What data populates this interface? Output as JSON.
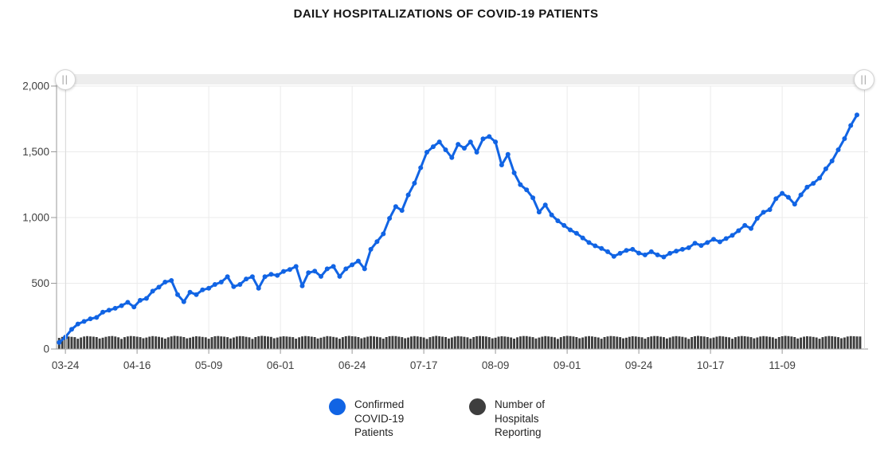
{
  "title": "DAILY HOSPITALIZATIONS OF COVID-19 PATIENTS",
  "range_slider": {
    "handle_icon": "||"
  },
  "colors": {
    "line": "#1164e4",
    "bar": "#3e3e3e",
    "grid": "#ebebeb",
    "axis": "#999999",
    "label": "#3f3f3f",
    "track": "#ededed",
    "stem": "#dcdcdc"
  },
  "chart_data": {
    "type": "line+bar",
    "title": "DAILY HOSPITALIZATIONS OF COVID-19 PATIENTS",
    "ylim": [
      0,
      2000
    ],
    "grid": true,
    "legend_position": "bottom",
    "y_ticks": [
      {
        "label": "2,000",
        "value": 2000
      },
      {
        "label": "1,500",
        "value": 1500
      },
      {
        "label": "1,000",
        "value": 1000
      },
      {
        "label": "500",
        "value": 500
      },
      {
        "label": "0",
        "value": 0
      }
    ],
    "x_ticks": [
      {
        "label": "03-24",
        "day": 2
      },
      {
        "label": "04-16",
        "day": 25
      },
      {
        "label": "05-09",
        "day": 48
      },
      {
        "label": "06-01",
        "day": 71
      },
      {
        "label": "06-24",
        "day": 94
      },
      {
        "label": "07-17",
        "day": 117
      },
      {
        "label": "08-09",
        "day": 140
      },
      {
        "label": "09-01",
        "day": 163
      },
      {
        "label": "09-24",
        "day": 186
      },
      {
        "label": "10-17",
        "day": 209
      },
      {
        "label": "11-09",
        "day": 232
      }
    ],
    "series": [
      {
        "name": "Confirmed COVID-19 Patients",
        "type": "line",
        "color": "#1164e4",
        "start_day": 0,
        "day_step": 2,
        "values": [
          50,
          90,
          150,
          190,
          210,
          230,
          240,
          280,
          295,
          310,
          330,
          355,
          320,
          370,
          385,
          440,
          470,
          509,
          521,
          414,
          360,
          432,
          414,
          450,
          462,
          491,
          509,
          550,
          474,
          491,
          533,
          550,
          462,
          550,
          568,
          560,
          590,
          605,
          628,
          480,
          580,
          592,
          552,
          610,
          628,
          552,
          610,
          640,
          669,
          610,
          758,
          817,
          876,
          994,
          1083,
          1054,
          1172,
          1261,
          1379,
          1497,
          1539,
          1575,
          1515,
          1456,
          1557,
          1527,
          1575,
          1497,
          1598,
          1616,
          1575,
          1400,
          1480,
          1340,
          1250,
          1210,
          1150,
          1042,
          1095,
          1020,
          975,
          940,
          906,
          880,
          845,
          810,
          785,
          765,
          740,
          705,
          728,
          750,
          758,
          730,
          716,
          740,
          716,
          700,
          728,
          745,
          758,
          770,
          805,
          787,
          810,
          835,
          815,
          840,
          864,
          900,
          940,
          917,
          994,
          1040,
          1060,
          1143,
          1184,
          1154,
          1101,
          1172,
          1231,
          1260,
          1300,
          1370,
          1430,
          1515,
          1600,
          1700,
          1780
        ]
      },
      {
        "name": "Number of Hospitals Reporting",
        "type": "bar",
        "color": "#3e3e3e",
        "start_day": 0,
        "day_step": 1,
        "values": [
          85,
          92,
          96,
          95,
          93,
          90,
          78,
          88,
          95,
          98,
          96,
          94,
          91,
          80,
          86,
          93,
          97,
          99,
          95,
          89,
          77,
          90,
          96,
          99,
          97,
          94,
          90,
          82,
          87,
          94,
          98,
          96,
          93,
          88,
          79,
          89,
          96,
          100,
          98,
          95,
          91,
          81,
          86,
          93,
          97,
          95,
          92,
          89,
          78,
          90,
          97,
          99,
          96,
          94,
          90,
          80,
          88,
          95,
          98,
          97,
          93,
          89,
          77,
          91,
          97,
          100,
          98,
          95,
          92,
          82,
          87,
          94,
          97,
          95,
          93,
          90,
          79,
          89,
          96,
          99,
          97,
          94,
          91,
          80,
          86,
          93,
          98,
          96,
          92,
          88,
          78,
          90,
          97,
          100,
          97,
          95,
          91,
          81,
          88,
          94,
          98,
          96,
          93,
          89,
          79,
          91,
          97,
          99,
          98,
          94,
          90,
          82,
          87,
          95,
          98,
          96,
          92,
          88,
          77,
          90,
          96,
          100,
          97,
          94,
          91,
          80,
          88,
          95,
          98,
          96,
          93,
          89,
          78,
          91,
          97,
          99,
          97,
          95,
          90,
          81,
          86,
          94,
          97,
          95,
          92,
          88,
          79,
          89,
          96,
          99,
          98,
          94,
          90,
          80,
          87,
          94,
          98,
          96,
          93,
          89,
          77,
          90,
          97,
          100,
          98,
          95,
          91,
          82,
          88,
          95,
          98,
          96,
          92,
          88,
          78,
          91,
          96,
          99,
          97,
          94,
          90,
          81,
          86,
          93,
          97,
          95,
          92,
          89,
          79,
          90,
          96,
          99,
          98,
          94,
          90,
          80,
          88,
          95,
          98,
          96,
          93,
          88,
          77,
          91,
          97,
          100,
          97,
          95,
          91,
          82,
          87,
          94,
          98,
          96,
          92,
          89,
          78,
          90,
          96,
          99,
          97,
          94,
          90,
          81,
          88,
          95,
          98,
          96,
          93,
          89,
          79,
          91,
          97,
          100,
          98,
          95,
          91,
          80,
          87,
          94,
          97,
          95,
          92,
          88,
          78,
          90,
          96,
          99,
          97,
          94,
          90,
          82,
          88,
          95,
          98,
          97,
          96,
          95
        ]
      }
    ],
    "legend": [
      {
        "label": "Confirmed COVID-19 Patients",
        "color": "#1164e4"
      },
      {
        "label": "Number of Hospitals Reporting",
        "color": "#3e3e3e"
      }
    ]
  }
}
